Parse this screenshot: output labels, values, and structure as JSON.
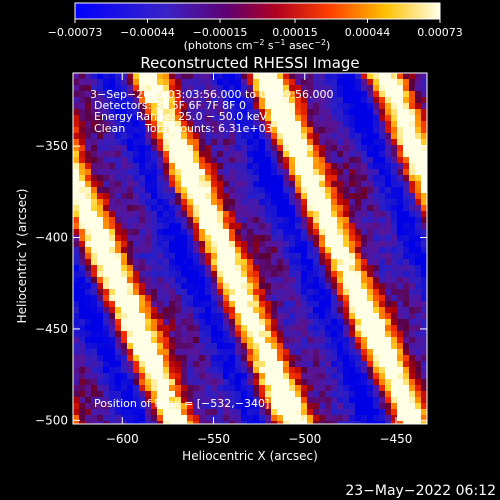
{
  "chart_data": {
    "type": "heatmap",
    "title": "Reconstructed RHESSI Image",
    "xlabel": "Heliocentric X (arcsec)",
    "ylabel": "Heliocentric Y (arcsec)",
    "xlim": [
      -627,
      -433
    ],
    "ylim": [
      -502,
      -310
    ],
    "x_ticks": [
      -600,
      -550,
      -500,
      -450
    ],
    "x_tick_labels": [
      "−600",
      "−550",
      "−500",
      "−450"
    ],
    "y_ticks": [
      -350,
      -400,
      -450,
      -500
    ],
    "y_tick_labels": [
      "−350",
      "−400",
      "−450",
      "−500"
    ],
    "colorbar": {
      "min": -0.00073,
      "max": 0.00073,
      "ticks": [
        -0.00073,
        -0.00044,
        -0.00015,
        0.00015,
        0.00044,
        0.00073
      ],
      "tick_labels": [
        "−0.00073",
        "−0.00044",
        "−0.00015",
        "0.00015",
        "0.00044",
        "0.00073"
      ],
      "unit_prefix": "(photons cm",
      "unit_exp1": "−2",
      "unit_mid": " s",
      "unit_exp2": "−1",
      "unit_mid2": " asec",
      "unit_exp3": "−2",
      "unit_suffix": ")",
      "palette": "blue-purple-red-yellow-white"
    },
    "annotations": {
      "time_range": "3−Sep−2015 03:03:56.000 to 03:09:56.000",
      "detectors": "Detectors: 3F 5F 6F 7F 8F 0",
      "energy_range": "Energy Range: 25.0 − 50.0 keV",
      "clean_label": "Clean",
      "total_counts": "Total counts: 6.31e+03",
      "peak": "Position of Peak = [−532,−340]"
    },
    "peak_position": [
      -532,
      -340
    ],
    "image_pattern": {
      "description_stripe_count": 4,
      "stripe_orientation": "diagonal, upper-right to lower-left"
    }
  },
  "footer": {
    "date": "23−May−2022 06:12"
  }
}
